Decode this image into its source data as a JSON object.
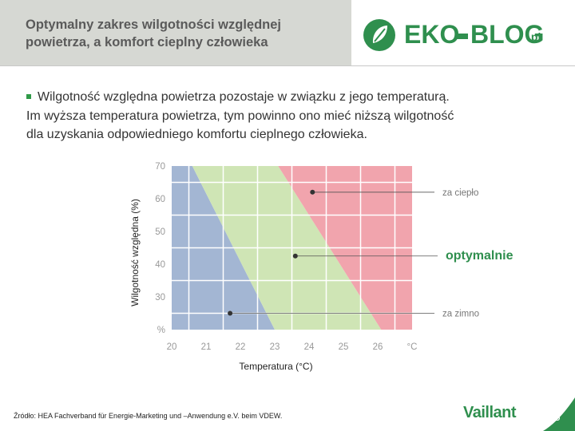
{
  "slide": {
    "title_lines": [
      "Optymalny zakres wilgotności względnej",
      "powietrza, a komfort cieplny człowieka"
    ],
    "body_lines": [
      "Wilgotność względna powietrza pozostaje w związku z jego temperaturą.",
      "Im wyższa temperatura powietrza, tym powinno ono mieć niższą wilgotność",
      "dla uzyskania odpowiedniego komfortu cieplnego człowieka."
    ],
    "logo": {
      "left": "EKO",
      "right": "BLOG",
      "suffix": ".pl"
    },
    "footer_source": "Źródło: HEA Fachverband für Energie-Marketing und –Anwendung e.V. beim VDEW.",
    "brand": "Vaillant",
    "page_number": "8",
    "colors": {
      "green": "#2f8f4e",
      "title_bg": "#d6d8d3"
    }
  },
  "chart_data": {
    "type": "area",
    "xlabel": "Temperatura (°C)",
    "ylabel": "Wilgotność względna (%)",
    "x_ticks": [
      "20",
      "21",
      "22",
      "23",
      "24",
      "25",
      "26",
      "°C"
    ],
    "y_ticks": [
      "70",
      "60",
      "50",
      "40",
      "30",
      "%"
    ],
    "xlim": [
      20,
      27
    ],
    "ylim": [
      20,
      70
    ],
    "regions": [
      {
        "name": "za zimno",
        "color": "#a3b6d3",
        "points": [
          [
            20,
            20
          ],
          [
            20,
            70
          ],
          [
            20.6,
            70
          ],
          [
            23,
            20
          ]
        ]
      },
      {
        "name": "optymalnie",
        "color": "#cfe5b5",
        "points": [
          [
            20.6,
            70
          ],
          [
            23.1,
            70
          ],
          [
            26.1,
            20
          ],
          [
            23,
            20
          ]
        ]
      },
      {
        "name": "za ciepło",
        "color": "#f1a4ad",
        "points": [
          [
            23.1,
            70
          ],
          [
            27,
            70
          ],
          [
            27,
            20
          ],
          [
            26.1,
            20
          ]
        ]
      }
    ],
    "annotations": [
      {
        "label": "za ciepło",
        "point": [
          24.1,
          62
        ],
        "style": "normal"
      },
      {
        "label": "optymalnie",
        "point": [
          23.6,
          42.5
        ],
        "style": "bold-green"
      },
      {
        "label": "za zimno",
        "point": [
          21.7,
          25
        ],
        "style": "normal"
      }
    ]
  }
}
